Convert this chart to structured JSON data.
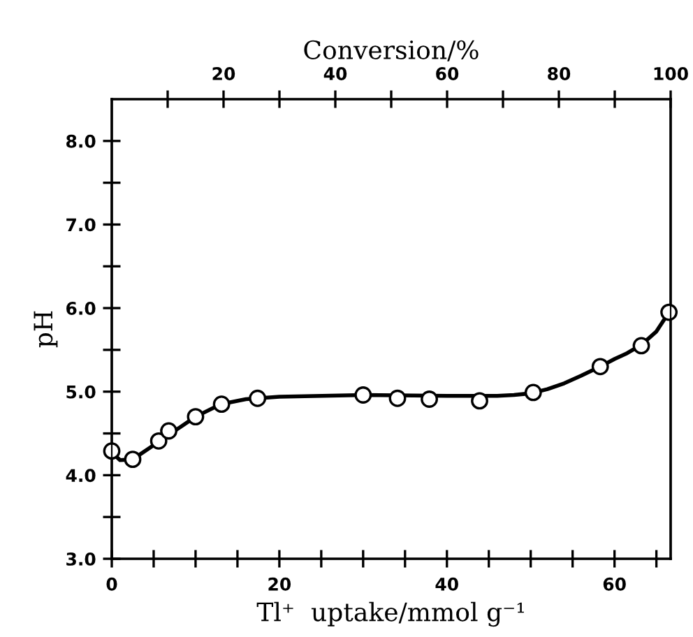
{
  "chart_data": {
    "type": "scatter",
    "xlabel": "Tl⁺  uptake/mmol g⁻¹",
    "ylabel": "pH",
    "x2label": "Conversion/%",
    "xlim": [
      0,
      66.7
    ],
    "ylim": [
      3.0,
      8.5
    ],
    "x2lim": [
      0,
      100
    ],
    "xticks": [
      0,
      {
        "value": 5,
        "label": null
      },
      {
        "value": 10,
        "label": null
      },
      {
        "value": 15,
        "label": null
      },
      20,
      {
        "value": 25,
        "label": null
      },
      {
        "value": 30,
        "label": null
      },
      {
        "value": 35,
        "label": null
      },
      40,
      {
        "value": 45,
        "label": null
      },
      {
        "value": 50,
        "label": null
      },
      {
        "value": 55,
        "label": null
      },
      60,
      {
        "value": 65,
        "label": null
      }
    ],
    "x2ticks": [
      {
        "value": 10,
        "label": null
      },
      20,
      {
        "value": 30,
        "label": null
      },
      40,
      {
        "value": 50,
        "label": null
      },
      60,
      {
        "value": 70,
        "label": null
      },
      80,
      {
        "value": 90,
        "label": null
      },
      100
    ],
    "yticks": [
      "3.0",
      {
        "value": 3.5,
        "label": null
      },
      {
        "value": 4.0,
        "label": "4.0"
      },
      {
        "value": 4.5,
        "label": null
      },
      {
        "value": 5.0,
        "label": "5.0"
      },
      {
        "value": 5.5,
        "label": null
      },
      {
        "value": 6.0,
        "label": "6.0"
      },
      {
        "value": 6.5,
        "label": null
      },
      {
        "value": 7.0,
        "label": "7.0"
      },
      {
        "value": 7.5,
        "label": null
      },
      {
        "value": 8.0,
        "label": "8.0"
      }
    ],
    "grid": false,
    "series": [
      {
        "type": "line",
        "color": "#000000",
        "line_style": "solid",
        "marker": "none",
        "x": [
          0,
          1,
          2.5,
          5.6,
          10,
          13,
          16,
          20,
          30,
          40,
          46,
          48,
          50,
          52,
          54,
          56,
          58.3,
          60,
          61.5,
          63.2,
          65,
          66.5
        ],
        "values": [
          4.27,
          4.18,
          4.19,
          4.4,
          4.7,
          4.85,
          4.91,
          4.94,
          4.96,
          4.95,
          4.95,
          4.96,
          4.98,
          5.03,
          5.1,
          5.19,
          5.3,
          5.39,
          5.46,
          5.56,
          5.72,
          5.95
        ]
      },
      {
        "color": "#000000",
        "marker": "circle",
        "x": [
          0,
          2.5,
          5.6,
          6.8,
          10.0,
          13.1,
          17.4,
          30.0,
          34.1,
          37.9,
          43.9,
          50.3,
          58.3,
          63.2,
          66.5
        ],
        "values": [
          4.29,
          4.19,
          4.41,
          4.53,
          4.7,
          4.85,
          4.92,
          4.96,
          4.92,
          4.91,
          4.89,
          4.99,
          5.3,
          5.55,
          5.95
        ]
      }
    ]
  }
}
